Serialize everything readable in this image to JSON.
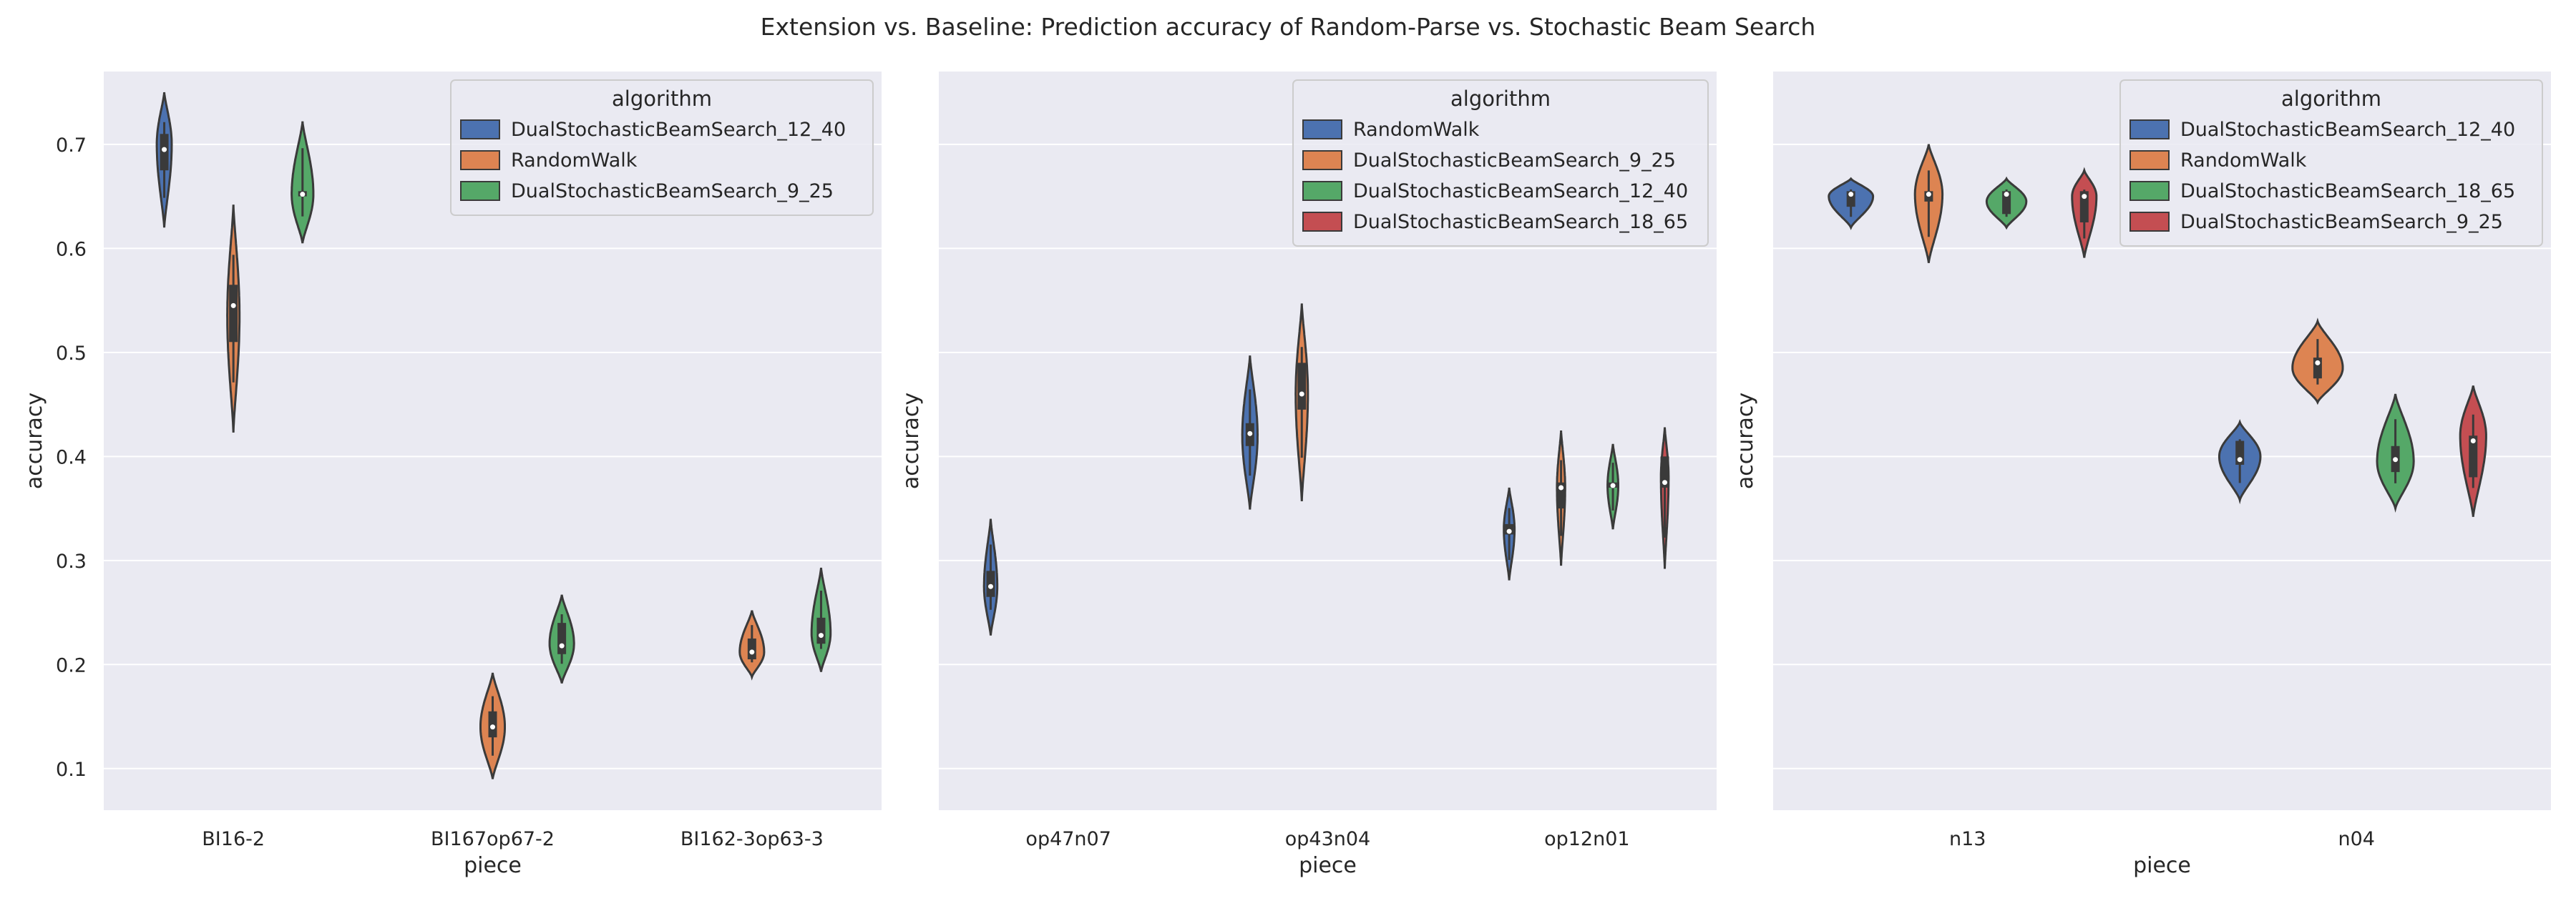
{
  "title": "Extension vs. Baseline: Prediction accuracy of Random-Parse vs. Stochastic Beam Search",
  "colors": {
    "background": "#eaeaf2",
    "grid": "#ffffff",
    "blue": "#4c72b0",
    "orange": "#dd8452",
    "green": "#55a868",
    "red": "#c44e52",
    "outline": "#3a3a3a"
  },
  "chart_data": [
    {
      "type": "violin",
      "xlabel": "piece",
      "ylabel": "accuracy",
      "ylim": [
        0.06,
        0.77
      ],
      "yticks": [
        0.1,
        0.2,
        0.3,
        0.4,
        0.5,
        0.6,
        0.7
      ],
      "grid": true,
      "legend_title": "algorithm",
      "legend_position": "top-right",
      "categories": [
        "BI16-2",
        "BI167op67-2",
        "BI162-3op63-3"
      ],
      "series": [
        {
          "name": "DualStochasticBeamSearch_12_40",
          "color": "blue",
          "violins": [
            {
              "category": 0,
              "min": 0.62,
              "max": 0.75,
              "q1": 0.675,
              "median": 0.695,
              "q3": 0.71,
              "width": 0.22,
              "peak": 0.7
            }
          ]
        },
        {
          "name": "RandomWalk",
          "color": "orange",
          "violins": [
            {
              "category": 0,
              "min": 0.423,
              "max": 0.642,
              "q1": 0.51,
              "median": 0.545,
              "q3": 0.565,
              "width": 0.18,
              "peak": 0.535
            },
            {
              "category": 1,
              "min": 0.09,
              "max": 0.192,
              "q1": 0.13,
              "median": 0.14,
              "q3": 0.155,
              "width": 0.36,
              "peak": 0.14
            },
            {
              "category": 2,
              "min": 0.188,
              "max": 0.252,
              "q1": 0.205,
              "median": 0.212,
              "q3": 0.225,
              "width": 0.36,
              "peak": 0.212
            }
          ]
        },
        {
          "name": "DualStochasticBeamSearch_9_25",
          "color": "green",
          "violins": [
            {
              "category": 0,
              "min": 0.605,
              "max": 0.722,
              "q1": 0.65,
              "median": 0.652,
              "q3": 0.655,
              "width": 0.32,
              "peak": 0.652
            },
            {
              "category": 1,
              "min": 0.182,
              "max": 0.267,
              "q1": 0.21,
              "median": 0.218,
              "q3": 0.24,
              "width": 0.36,
              "peak": 0.22
            },
            {
              "category": 2,
              "min": 0.193,
              "max": 0.293,
              "q1": 0.22,
              "median": 0.228,
              "q3": 0.245,
              "width": 0.28,
              "peak": 0.23
            }
          ]
        }
      ]
    },
    {
      "type": "violin",
      "xlabel": "piece",
      "ylabel": "accuracy",
      "ylim": [
        0.06,
        0.77
      ],
      "yticks": [
        0.1,
        0.2,
        0.3,
        0.4,
        0.5,
        0.6,
        0.7
      ],
      "grid": true,
      "legend_title": "algorithm",
      "legend_position": "top-right",
      "categories": [
        "op47n07",
        "op43n04",
        "op12n01"
      ],
      "series": [
        {
          "name": "RandomWalk",
          "color": "blue",
          "violins": [
            {
              "category": 0,
              "min": 0.228,
              "max": 0.34,
              "q1": 0.265,
              "median": 0.275,
              "q3": 0.29,
              "width": 0.26,
              "peak": 0.275
            },
            {
              "category": 1,
              "min": 0.349,
              "max": 0.497,
              "q1": 0.41,
              "median": 0.422,
              "q3": 0.432,
              "width": 0.3,
              "peak": 0.42
            },
            {
              "category": 2,
              "min": 0.281,
              "max": 0.37,
              "q1": 0.325,
              "median": 0.328,
              "q3": 0.335,
              "width": 0.21,
              "peak": 0.33
            }
          ]
        },
        {
          "name": "DualStochasticBeamSearch_9_25",
          "color": "orange",
          "violins": [
            {
              "category": 1,
              "min": 0.357,
              "max": 0.547,
              "q1": 0.445,
              "median": 0.46,
              "q3": 0.49,
              "width": 0.24,
              "peak": 0.46
            },
            {
              "category": 2,
              "min": 0.295,
              "max": 0.425,
              "q1": 0.35,
              "median": 0.37,
              "q3": 0.375,
              "width": 0.16,
              "peak": 0.37
            }
          ]
        },
        {
          "name": "DualStochasticBeamSearch_12_40",
          "color": "green",
          "violins": [
            {
              "category": 2,
              "min": 0.33,
              "max": 0.412,
              "q1": 0.37,
              "median": 0.372,
              "q3": 0.375,
              "width": 0.21,
              "peak": 0.372
            }
          ]
        },
        {
          "name": "DualStochasticBeamSearch_18_65",
          "color": "red",
          "violins": [
            {
              "category": 2,
              "min": 0.292,
              "max": 0.428,
              "q1": 0.37,
              "median": 0.375,
              "q3": 0.4,
              "width": 0.15,
              "peak": 0.38
            }
          ]
        }
      ]
    },
    {
      "type": "violin",
      "xlabel": "piece",
      "ylabel": "accuracy",
      "ylim": [
        0.06,
        0.77
      ],
      "yticks": [
        0.1,
        0.2,
        0.3,
        0.4,
        0.5,
        0.6,
        0.7
      ],
      "grid": true,
      "legend_title": "algorithm",
      "legend_position": "top-right",
      "categories": [
        "n13",
        "n04"
      ],
      "series": [
        {
          "name": "DualStochasticBeamSearch_12_40",
          "color": "blue",
          "violins": [
            {
              "category": 0,
              "min": 0.62,
              "max": 0.667,
              "q1": 0.64,
              "median": 0.652,
              "q3": 0.655,
              "width": 0.58,
              "peak": 0.65
            },
            {
              "category": 1,
              "min": 0.358,
              "max": 0.433,
              "q1": 0.392,
              "median": 0.397,
              "q3": 0.415,
              "width": 0.54,
              "peak": 0.4
            }
          ]
        },
        {
          "name": "RandomWalk",
          "color": "orange",
          "violins": [
            {
              "category": 0,
              "min": 0.586,
              "max": 0.7,
              "q1": 0.645,
              "median": 0.652,
              "q3": 0.655,
              "width": 0.36,
              "peak": 0.652
            },
            {
              "category": 1,
              "min": 0.452,
              "max": 0.53,
              "q1": 0.475,
              "median": 0.49,
              "q3": 0.495,
              "width": 0.66,
              "peak": 0.485
            }
          ]
        },
        {
          "name": "DualStochasticBeamSearch_18_65",
          "color": "green",
          "violins": [
            {
              "category": 0,
              "min": 0.62,
              "max": 0.667,
              "q1": 0.633,
              "median": 0.652,
              "q3": 0.655,
              "width": 0.52,
              "peak": 0.645
            },
            {
              "category": 1,
              "min": 0.35,
              "max": 0.46,
              "q1": 0.385,
              "median": 0.397,
              "q3": 0.41,
              "width": 0.48,
              "peak": 0.395
            }
          ]
        },
        {
          "name": "DualStochasticBeamSearch_9_25",
          "color": "red",
          "violins": [
            {
              "category": 0,
              "min": 0.591,
              "max": 0.675,
              "q1": 0.625,
              "median": 0.65,
              "q3": 0.655,
              "width": 0.32,
              "peak": 0.65
            },
            {
              "category": 1,
              "min": 0.342,
              "max": 0.468,
              "q1": 0.38,
              "median": 0.415,
              "q3": 0.42,
              "width": 0.34,
              "peak": 0.42
            }
          ]
        }
      ]
    }
  ]
}
